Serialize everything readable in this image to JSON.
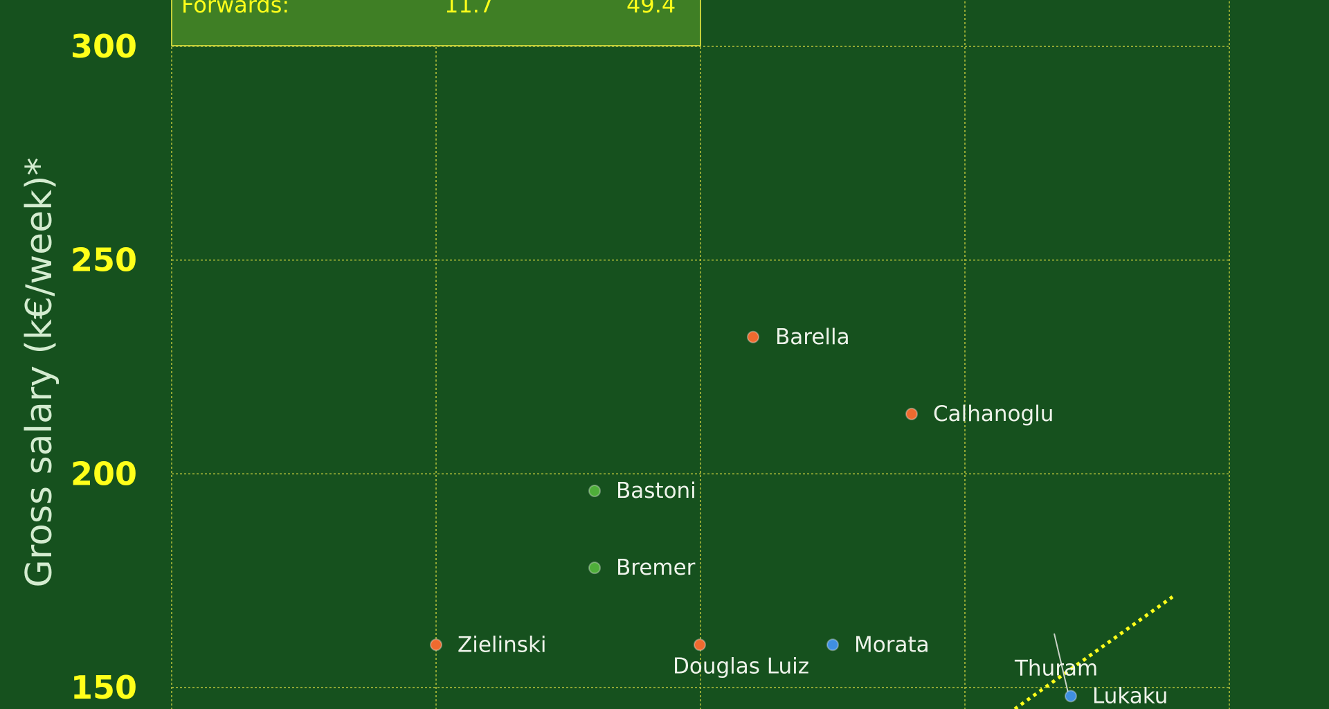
{
  "chart_data": {
    "type": "scatter",
    "ylabel": "Gross salary (k€/week)*",
    "yticks": [
      "150",
      "200",
      "250",
      "300"
    ],
    "ylim": [
      144,
      310
    ],
    "grid": true,
    "colors": {
      "background": "#16511e",
      "midfielders": "#ee6a2f",
      "defenders": "#4fae3a",
      "forwards": "#3f8fe0",
      "grid": "#b9c23a",
      "trend": "#ffff1a"
    },
    "summary_box": {
      "row_label": "Forwards:",
      "value1": "11.7",
      "value2": "49.4"
    },
    "points": [
      {
        "name": "Barella",
        "group": "midfielders",
        "y": 232
      },
      {
        "name": "Calhanoglu",
        "group": "midfielders",
        "y": 214
      },
      {
        "name": "Bastoni",
        "group": "defenders",
        "y": 196
      },
      {
        "name": "Bremer",
        "group": "defenders",
        "y": 178
      },
      {
        "name": "Zielinski",
        "group": "midfielders",
        "y": 160
      },
      {
        "name": "Douglas Luiz",
        "group": "midfielders",
        "y": 160
      },
      {
        "name": "Morata",
        "group": "forwards",
        "y": 160
      },
      {
        "name": "Thuram",
        "group": "forwards",
        "y": 148
      },
      {
        "name": "Lukaku",
        "group": "forwards",
        "y": 148
      }
    ]
  }
}
